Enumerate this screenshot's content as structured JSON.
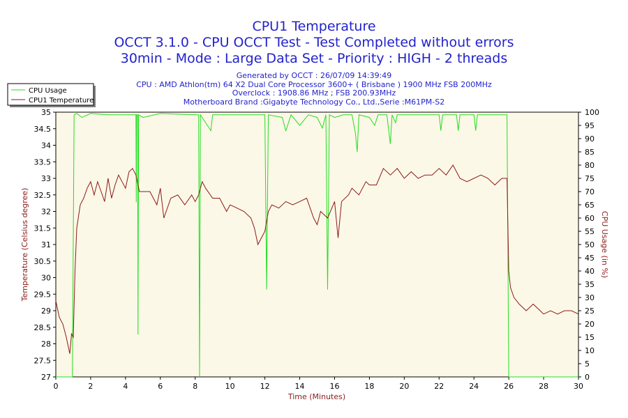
{
  "titles": {
    "line1": "CPU1 Temperature",
    "line2": "OCCT 3.1.0 - CPU OCCT Test - Test Completed without errors",
    "line3": "30min - Mode : Large Data Set - Priority : HIGH - 2 threads",
    "line4": "Generated by OCCT : 26/07/09 14:39:49",
    "line5": "CPU : AMD Athlon(tm) 64 X2 Dual Core Processor 3600+ ( Brisbane ) 1900 MHz FSB 200MHz",
    "line6": "Overclock : 1908.86 MHz ; FSB 200.93MHz",
    "line7": "Motherboard Brand :Gigabyte Technology Co., Ltd.,Serie :M61PM-S2"
  },
  "colors": {
    "background": "#ffffff",
    "plot_background": "#fcf8e7",
    "usage_line": "#22dd22",
    "temperature_line": "#8b1a1a",
    "title_text": "#2222cc",
    "axis_label_text": "#8b1a1a"
  },
  "chart_data": {
    "type": "line",
    "title": "CPU1 Temperature",
    "xlabel": "Time (Minutes)",
    "ylabel": "Temperature (Celsius degree)",
    "y2label": "CPU Usage (in %)",
    "xlim": [
      0,
      30
    ],
    "ylim": [
      27,
      35
    ],
    "y2lim": [
      0,
      100
    ],
    "x_ticks": [
      0,
      2,
      4,
      6,
      8,
      10,
      12,
      14,
      16,
      18,
      20,
      22,
      24,
      26,
      28,
      30
    ],
    "y_ticks": [
      "27",
      "27.5",
      "28",
      "28.5",
      "29",
      "29.5",
      "30",
      "30.5",
      "31",
      "31.5",
      "32",
      "32.5",
      "33",
      "33.5",
      "34",
      "34.5",
      "35"
    ],
    "y2_ticks": [
      0,
      5,
      10,
      15,
      20,
      25,
      30,
      35,
      40,
      45,
      50,
      55,
      60,
      65,
      70,
      75,
      80,
      85,
      90,
      95,
      100
    ],
    "grid": false,
    "legend_position": "top-left",
    "series": [
      {
        "name": "CPU Usage",
        "axis": "right",
        "points": [
          [
            0,
            0
          ],
          [
            0.95,
            0
          ],
          [
            1.05,
            99
          ],
          [
            1.2,
            99.5
          ],
          [
            1.5,
            98
          ],
          [
            2,
            99.5
          ],
          [
            3,
            99
          ],
          [
            4.6,
            99
          ],
          [
            4.62,
            66
          ],
          [
            4.64,
            99
          ],
          [
            4.7,
            99
          ],
          [
            4.72,
            16
          ],
          [
            4.75,
            99
          ],
          [
            5,
            98
          ],
          [
            6,
            99.5
          ],
          [
            8,
            99
          ],
          [
            8.2,
            99
          ],
          [
            8.25,
            0
          ],
          [
            8.3,
            99
          ],
          [
            8.5,
            97
          ],
          [
            8.9,
            93
          ],
          [
            9,
            99
          ],
          [
            12,
            99
          ],
          [
            12.1,
            33
          ],
          [
            12.2,
            99
          ],
          [
            13,
            98
          ],
          [
            13.2,
            93
          ],
          [
            13.5,
            99
          ],
          [
            14,
            95
          ],
          [
            14.5,
            99
          ],
          [
            15,
            98
          ],
          [
            15.3,
            94
          ],
          [
            15.5,
            99
          ],
          [
            15.6,
            33
          ],
          [
            15.7,
            99
          ],
          [
            16,
            98
          ],
          [
            16.5,
            99
          ],
          [
            17,
            99
          ],
          [
            17.2,
            92
          ],
          [
            17.3,
            85
          ],
          [
            17.4,
            99
          ],
          [
            18,
            98
          ],
          [
            18.3,
            95
          ],
          [
            18.5,
            99
          ],
          [
            19,
            99
          ],
          [
            19.2,
            88
          ],
          [
            19.3,
            99
          ],
          [
            19.5,
            96
          ],
          [
            19.6,
            99
          ],
          [
            20,
            99
          ],
          [
            21,
            99
          ],
          [
            22,
            99
          ],
          [
            22.1,
            93
          ],
          [
            22.2,
            99
          ],
          [
            23,
            99
          ],
          [
            23.1,
            93
          ],
          [
            23.2,
            99
          ],
          [
            24,
            99
          ],
          [
            24.1,
            93
          ],
          [
            24.2,
            99
          ],
          [
            25,
            99
          ],
          [
            25.9,
            99
          ],
          [
            26,
            0
          ],
          [
            30,
            0
          ]
        ]
      },
      {
        "name": "CPU1 Temperature",
        "axis": "left",
        "points": [
          [
            0,
            29.3
          ],
          [
            0.2,
            28.8
          ],
          [
            0.4,
            28.6
          ],
          [
            0.6,
            28.2
          ],
          [
            0.8,
            27.7
          ],
          [
            0.9,
            28.3
          ],
          [
            1,
            28.2
          ],
          [
            1.1,
            30.2
          ],
          [
            1.2,
            31.5
          ],
          [
            1.4,
            32.2
          ],
          [
            1.6,
            32.4
          ],
          [
            1.8,
            32.7
          ],
          [
            2,
            32.9
          ],
          [
            2.2,
            32.5
          ],
          [
            2.4,
            32.9
          ],
          [
            2.6,
            32.6
          ],
          [
            2.8,
            32.3
          ],
          [
            3,
            33.0
          ],
          [
            3.2,
            32.4
          ],
          [
            3.4,
            32.8
          ],
          [
            3.6,
            33.1
          ],
          [
            3.8,
            32.9
          ],
          [
            4,
            32.7
          ],
          [
            4.2,
            33.2
          ],
          [
            4.4,
            33.3
          ],
          [
            4.6,
            33.1
          ],
          [
            4.8,
            32.6
          ],
          [
            5,
            32.6
          ],
          [
            5.4,
            32.6
          ],
          [
            5.8,
            32.2
          ],
          [
            6,
            32.7
          ],
          [
            6.2,
            31.8
          ],
          [
            6.6,
            32.4
          ],
          [
            7,
            32.5
          ],
          [
            7.4,
            32.2
          ],
          [
            7.8,
            32.5
          ],
          [
            8,
            32.3
          ],
          [
            8.2,
            32.5
          ],
          [
            8.4,
            32.9
          ],
          [
            8.6,
            32.7
          ],
          [
            9,
            32.4
          ],
          [
            9.4,
            32.4
          ],
          [
            9.8,
            32.0
          ],
          [
            10,
            32.2
          ],
          [
            10.4,
            32.1
          ],
          [
            10.8,
            32.0
          ],
          [
            11.2,
            31.8
          ],
          [
            11.4,
            31.5
          ],
          [
            11.6,
            31.0
          ],
          [
            11.8,
            31.2
          ],
          [
            12,
            31.4
          ],
          [
            12.2,
            32.0
          ],
          [
            12.4,
            32.2
          ],
          [
            12.8,
            32.1
          ],
          [
            13.2,
            32.3
          ],
          [
            13.6,
            32.2
          ],
          [
            14,
            32.3
          ],
          [
            14.4,
            32.4
          ],
          [
            14.8,
            31.8
          ],
          [
            15,
            31.6
          ],
          [
            15.2,
            32.0
          ],
          [
            15.6,
            31.8
          ],
          [
            16,
            32.3
          ],
          [
            16.2,
            31.2
          ],
          [
            16.4,
            32.3
          ],
          [
            16.8,
            32.5
          ],
          [
            17,
            32.7
          ],
          [
            17.4,
            32.5
          ],
          [
            17.8,
            32.9
          ],
          [
            18,
            32.8
          ],
          [
            18.4,
            32.8
          ],
          [
            18.8,
            33.3
          ],
          [
            19.2,
            33.1
          ],
          [
            19.6,
            33.3
          ],
          [
            20,
            33.0
          ],
          [
            20.4,
            33.2
          ],
          [
            20.8,
            33.0
          ],
          [
            21.2,
            33.1
          ],
          [
            21.6,
            33.1
          ],
          [
            22,
            33.3
          ],
          [
            22.4,
            33.1
          ],
          [
            22.8,
            33.4
          ],
          [
            23.2,
            33.0
          ],
          [
            23.6,
            32.9
          ],
          [
            24,
            33.0
          ],
          [
            24.4,
            33.1
          ],
          [
            24.8,
            33.0
          ],
          [
            25.2,
            32.8
          ],
          [
            25.6,
            33.0
          ],
          [
            25.9,
            33.0
          ],
          [
            26,
            30.2
          ],
          [
            26.1,
            29.7
          ],
          [
            26.3,
            29.4
          ],
          [
            26.6,
            29.2
          ],
          [
            27,
            29.0
          ],
          [
            27.4,
            29.2
          ],
          [
            27.8,
            29.0
          ],
          [
            28,
            28.9
          ],
          [
            28.4,
            29.0
          ],
          [
            28.8,
            28.9
          ],
          [
            29.2,
            29.0
          ],
          [
            29.6,
            29.0
          ],
          [
            30,
            28.9
          ]
        ]
      }
    ]
  }
}
